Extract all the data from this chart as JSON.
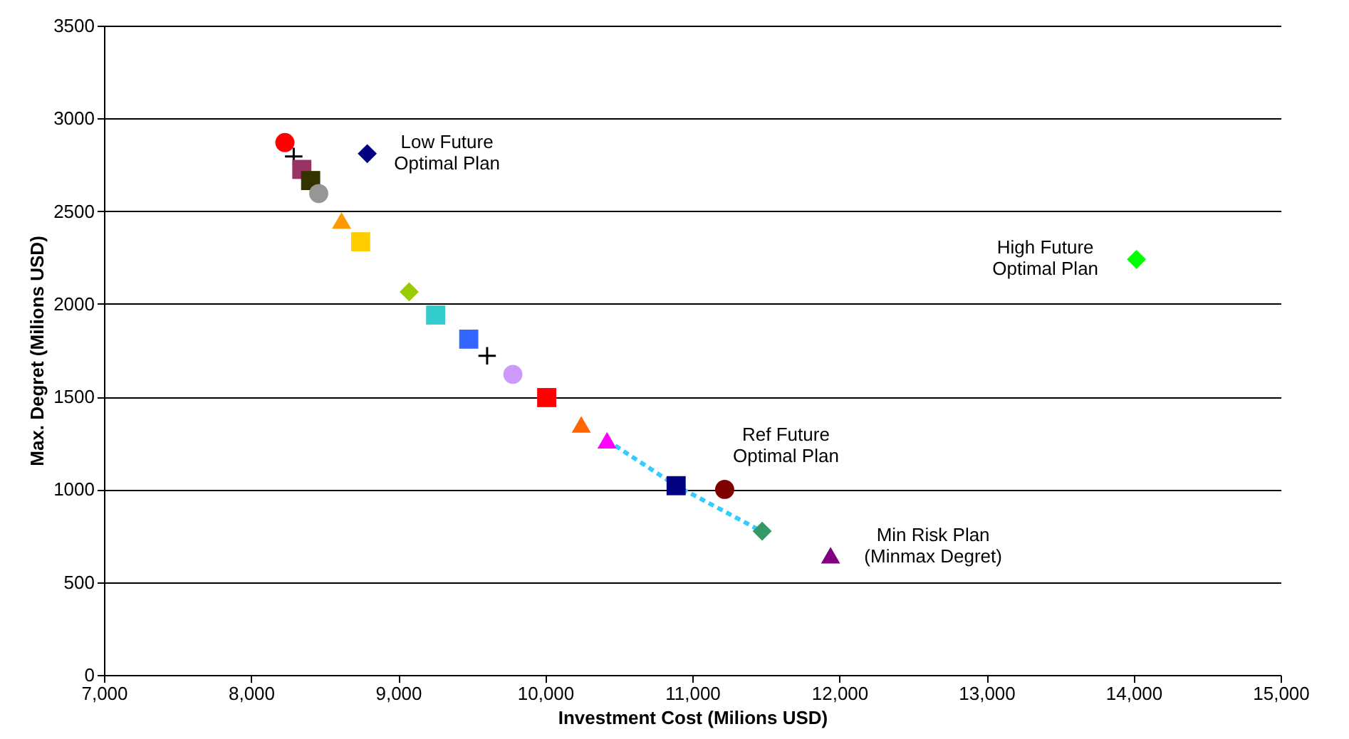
{
  "chart_data": {
    "type": "scatter",
    "xlabel": "Investment Cost (Milions USD)",
    "ylabel": "Max. Degret (Milions USD)",
    "xlim": [
      7000,
      15000
    ],
    "xticks": [
      {
        "value": 7000,
        "label": "7,000"
      },
      {
        "value": 8000,
        "label": "8,000"
      },
      {
        "value": 9000,
        "label": "9,000"
      },
      {
        "value": 10000,
        "label": "10,000"
      },
      {
        "value": 11000,
        "label": "11,000"
      },
      {
        "value": 12000,
        "label": "12,000"
      },
      {
        "value": 13000,
        "label": "13,000"
      },
      {
        "value": 14000,
        "label": "14,000"
      },
      {
        "value": 15000,
        "label": "15,000"
      }
    ],
    "ylim": [
      0,
      3500
    ],
    "yticks": [
      0,
      500,
      1000,
      1500,
      2000,
      2500,
      3000,
      3500
    ],
    "grid": "y",
    "series": [
      {
        "type": "line",
        "line_style": "dashed",
        "marker": "none",
        "color": "#33ccff",
        "x": [
          10420,
          10890,
          11470
        ],
        "values": [
          1265,
          1020,
          775
        ]
      },
      {
        "color": "#ff0000",
        "marker": "circle",
        "x": [
          8230
        ],
        "values": [
          2870
        ]
      },
      {
        "color": "#000000",
        "marker": "cross",
        "x": [
          8290
        ],
        "values": [
          2795
        ]
      },
      {
        "color": "#993366",
        "marker": "square",
        "x": [
          8345
        ],
        "values": [
          2725
        ]
      },
      {
        "color": "#333300",
        "marker": "square",
        "x": [
          8405
        ],
        "values": [
          2665
        ]
      },
      {
        "color": "#969696",
        "marker": "circle",
        "x": [
          8460
        ],
        "values": [
          2595
        ]
      },
      {
        "color": "#000080",
        "marker": "diamond",
        "x": [
          8790
        ],
        "values": [
          2810
        ]
      },
      {
        "color": "#ff9900",
        "marker": "triangle",
        "x": [
          8615
        ],
        "values": [
          2450
        ]
      },
      {
        "color": "#ffcc00",
        "marker": "square",
        "x": [
          8745
        ],
        "values": [
          2335
        ]
      },
      {
        "color": "#99cc00",
        "marker": "diamond",
        "x": [
          9075
        ],
        "values": [
          2065
        ]
      },
      {
        "color": "#33cccc",
        "marker": "square",
        "x": [
          9255
        ],
        "values": [
          1940
        ]
      },
      {
        "color": "#3366ff",
        "marker": "square",
        "x": [
          9480
        ],
        "values": [
          1810
        ]
      },
      {
        "color": "#000000",
        "marker": "cross",
        "x": [
          9605
        ],
        "values": [
          1720
        ]
      },
      {
        "color": "#cc99ff",
        "marker": "circle",
        "x": [
          9780
        ],
        "values": [
          1620
        ]
      },
      {
        "color": "#ff0000",
        "marker": "square",
        "x": [
          10010
        ],
        "values": [
          1495
        ]
      },
      {
        "color": "#ff6600",
        "marker": "triangle",
        "x": [
          10245
        ],
        "values": [
          1350
        ]
      },
      {
        "color": "#ff00ff",
        "marker": "triangle",
        "x": [
          10420
        ],
        "values": [
          1265
        ]
      },
      {
        "color": "#000080",
        "marker": "square",
        "x": [
          10890
        ],
        "values": [
          1020
        ]
      },
      {
        "color": "#800000",
        "marker": "circle",
        "x": [
          11220
        ],
        "values": [
          1000
        ]
      },
      {
        "color": "#339966",
        "marker": "diamond",
        "x": [
          11475
        ],
        "values": [
          775
        ]
      },
      {
        "color": "#00ff00",
        "marker": "diamond",
        "x": [
          14020
        ],
        "values": [
          2240
        ]
      },
      {
        "color": "#800080",
        "marker": "triangle",
        "x": [
          11940
        ],
        "values": [
          645
        ]
      }
    ],
    "annotations": [
      {
        "text": "Low Future\nOptimal Plan",
        "x": 8790,
        "y": 2810
      },
      {
        "text": "High Future\nOptimal Plan",
        "x": 14020,
        "y": 2240
      },
      {
        "text": "Ref Future\nOptimal Plan",
        "x": 11220,
        "y": 1000
      },
      {
        "text": "Min Risk Plan\n(Minmax Degret)",
        "x": 11940,
        "y": 645
      }
    ]
  }
}
